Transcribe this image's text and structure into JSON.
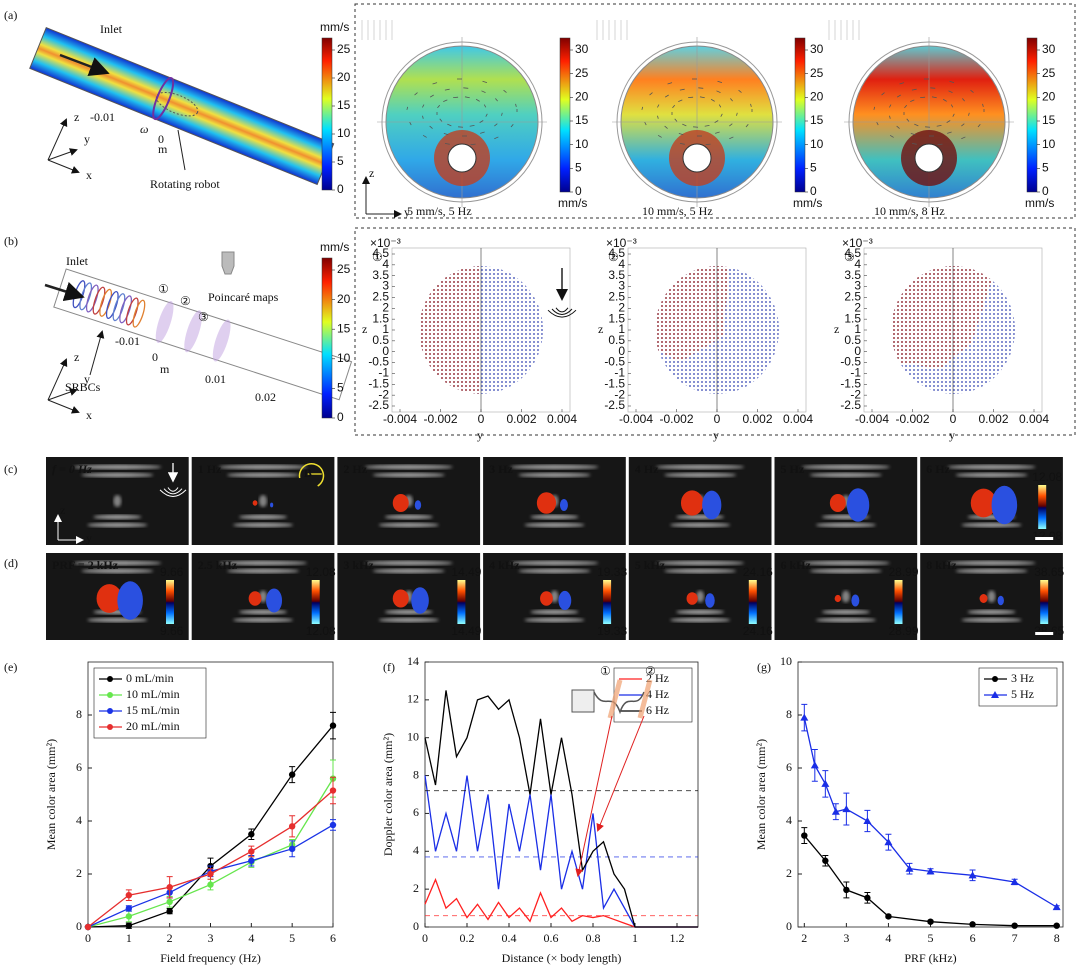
{
  "figure": {
    "panel_a": {
      "label": "(a)",
      "inlet": "Inlet",
      "omega": "ω",
      "robot": "Rotating robot",
      "axes": [
        "z",
        "y",
        "x"
      ],
      "colorbar_unit": "mm/s",
      "colorbar_ticks": [
        0,
        5,
        10,
        15,
        20,
        25
      ],
      "sim_ticks": [
        "-0.01",
        "0",
        "m"
      ],
      "flow_maps": {
        "axes": [
          "z",
          "y"
        ],
        "captions": [
          "5 mm/s, 5 Hz",
          "10 mm/s, 5 Hz",
          "10 mm/s, 8 Hz"
        ],
        "colorbar_ticks": [
          0,
          5,
          10,
          15,
          20,
          25,
          30
        ],
        "colorbar_unit": "mm/s"
      }
    },
    "panel_b": {
      "label": "(b)",
      "inlet": "Inlet",
      "markers": [
        "①",
        "②",
        "③"
      ],
      "poincare": "Poincaré maps",
      "srbcs": "SRBCs",
      "axes": [
        "z",
        "y",
        "x"
      ],
      "colorbar_unit": "mm/s",
      "colorbar_ticks": [
        0,
        5,
        10,
        15,
        20,
        25
      ],
      "sim_ticks": [
        "-0.01",
        "0",
        "0.01",
        "0.02",
        "m"
      ],
      "maps": {
        "scale": "×10⁻³",
        "ylabel": "z",
        "xlabel": "y",
        "yticks": [
          4.5,
          4,
          3.5,
          3,
          2.5,
          2,
          1.5,
          1,
          0.5,
          0,
          -0.5,
          -1,
          -1.5,
          -2,
          -2.5
        ],
        "xticks": [
          -0.004,
          -0.002,
          0,
          0.002,
          0.004
        ]
      }
    },
    "panel_c": {
      "label": "(c)",
      "frames": [
        "f = 0 Hz",
        "1 Hz",
        "2 Hz",
        "3 Hz",
        "4 Hz",
        "5 Hz",
        "6 Hz"
      ],
      "field": "B",
      "axes": [
        "z",
        "y"
      ],
      "colorbar": [
        "12.08",
        "12.08"
      ]
    },
    "panel_d": {
      "label": "(d)",
      "frames": [
        "PRF = 2 kHz",
        "2.5 kHz",
        "3 kHz",
        "4 kHz",
        "5 kHz",
        "6 kHz",
        "8 kHz"
      ],
      "colorbars": [
        [
          "9.66",
          "9.66"
        ],
        [
          "12.08",
          "12.08"
        ],
        [
          "14.49",
          "14.49"
        ],
        [
          "19.33",
          "19.33"
        ],
        [
          "24.16",
          "24.16"
        ],
        [
          "28.99",
          "28.99"
        ],
        [
          "38.65",
          "38.65"
        ]
      ]
    }
  },
  "chart_data": [
    {
      "type": "line",
      "panel_label": "(e)",
      "xlabel": "Field frequency (Hz)",
      "ylabel": "Mean color area (mm²)",
      "x": [
        0,
        1,
        2,
        3,
        4,
        5,
        6
      ],
      "xlim": [
        0,
        6
      ],
      "xticks": [
        0,
        1,
        2,
        3,
        4,
        5,
        6
      ],
      "ylim": [
        0,
        10
      ],
      "yticks": [
        0,
        2,
        4,
        6,
        8
      ],
      "legend": "top-left",
      "series": [
        {
          "name": "0 mL/min",
          "color": "#000000",
          "marker": "circle",
          "values": [
            0,
            0.05,
            0.6,
            2.3,
            3.5,
            5.75,
            7.6
          ],
          "errors": [
            0,
            0.1,
            0.1,
            0.3,
            0.2,
            0.3,
            0.5
          ]
        },
        {
          "name": "10 mL/min",
          "color": "#66e64d",
          "marker": "circle",
          "values": [
            0,
            0.4,
            0.95,
            1.6,
            2.45,
            3.1,
            5.6
          ],
          "errors": [
            0,
            0.2,
            0.2,
            0.2,
            0.2,
            0.2,
            0.7
          ]
        },
        {
          "name": "15 mL/min",
          "color": "#1a33e6",
          "marker": "circle",
          "values": [
            0,
            0.7,
            1.3,
            2.1,
            2.5,
            2.95,
            3.85
          ],
          "errors": [
            0,
            0.1,
            0.2,
            0.2,
            0.2,
            0.3,
            0.2
          ]
        },
        {
          "name": "20 mL/min",
          "color": "#e62e2e",
          "marker": "circle",
          "values": [
            0,
            1.2,
            1.5,
            2.0,
            2.85,
            3.8,
            5.15
          ],
          "errors": [
            0,
            0.2,
            0.4,
            0.2,
            0.2,
            0.4,
            0.5
          ]
        }
      ]
    },
    {
      "type": "line",
      "panel_label": "(f)",
      "xlabel": "Distance (× body length)",
      "ylabel": "Doppler color area (mm²)",
      "x": [
        0,
        0.05,
        0.1,
        0.15,
        0.2,
        0.25,
        0.3,
        0.35,
        0.4,
        0.45,
        0.5,
        0.55,
        0.6,
        0.65,
        0.7,
        0.75,
        0.8,
        0.85,
        0.9,
        0.95,
        1.0,
        1.05,
        1.1,
        1.15,
        1.2,
        1.25,
        1.3
      ],
      "xlim": [
        0,
        1.3
      ],
      "xticks": [
        0,
        0.2,
        0.4,
        0.6,
        0.8,
        1,
        1.2
      ],
      "ylim": [
        0,
        14
      ],
      "yticks": [
        0,
        2,
        4,
        6,
        8,
        10,
        12,
        14
      ],
      "legend": "top-right",
      "annotations": [
        "①",
        "②"
      ],
      "series": [
        {
          "name": "2 Hz",
          "color": "#ff2020",
          "marker": "none",
          "mean": 0.6,
          "values": [
            1.2,
            2.5,
            1,
            1.5,
            0.5,
            1.2,
            0.4,
            1.3,
            0.5,
            1,
            0.3,
            1.8,
            0.5,
            1,
            0.3,
            0.6,
            0.5,
            0.6,
            0.4,
            0.2,
            0,
            0,
            0,
            0,
            0,
            0,
            0
          ]
        },
        {
          "name": "4 Hz",
          "color": "#1a2ee6",
          "marker": "none",
          "mean": 3.7,
          "values": [
            8,
            4,
            6,
            4,
            8,
            4,
            7,
            2,
            6.5,
            4,
            7,
            3,
            7,
            2,
            4,
            2,
            6,
            1,
            2,
            1,
            0,
            0,
            0,
            0,
            0,
            0,
            0
          ]
        },
        {
          "name": "6 Hz",
          "color": "#000000",
          "marker": "none",
          "mean": 7.2,
          "values": [
            10,
            7.5,
            12.5,
            9,
            10,
            12,
            12.2,
            11.5,
            12,
            10,
            7,
            11,
            7,
            10,
            7,
            3,
            4,
            4.5,
            2.8,
            2,
            0,
            0,
            0,
            0,
            0,
            0,
            0
          ]
        }
      ]
    },
    {
      "type": "line",
      "panel_label": "(g)",
      "xlabel": "PRF (kHz)",
      "ylabel": "Mean color area (mm²)",
      "xlim": [
        1.85,
        8.15
      ],
      "xticks": [
        2,
        3,
        4,
        5,
        6,
        7,
        8
      ],
      "ylim": [
        0,
        10
      ],
      "yticks": [
        0,
        2,
        4,
        6,
        8,
        10
      ],
      "legend": "top-right",
      "series": [
        {
          "name": "3 Hz",
          "color": "#000000",
          "marker": "circle",
          "x": [
            2,
            2.5,
            3,
            3.5,
            4,
            5,
            6,
            7,
            8
          ],
          "values": [
            3.45,
            2.5,
            1.4,
            1.1,
            0.4,
            0.2,
            0.1,
            0.05,
            0.05
          ],
          "errors": [
            0.3,
            0.2,
            0.3,
            0.2,
            0.05,
            0.05,
            0.03,
            0.02,
            0.02
          ]
        },
        {
          "name": "5 Hz",
          "color": "#1a2ee6",
          "marker": "triangle",
          "x": [
            2,
            2.25,
            2.5,
            2.75,
            3,
            3.5,
            4,
            4.5,
            5,
            6,
            7,
            8
          ],
          "values": [
            7.9,
            6.1,
            5.4,
            4.35,
            4.45,
            4.0,
            3.2,
            2.2,
            2.1,
            1.95,
            1.7,
            0.75
          ],
          "errors": [
            0.5,
            0.6,
            0.5,
            0.3,
            0.6,
            0.4,
            0.3,
            0.2,
            0.1,
            0.2,
            0.1,
            0.05
          ]
        }
      ]
    }
  ]
}
